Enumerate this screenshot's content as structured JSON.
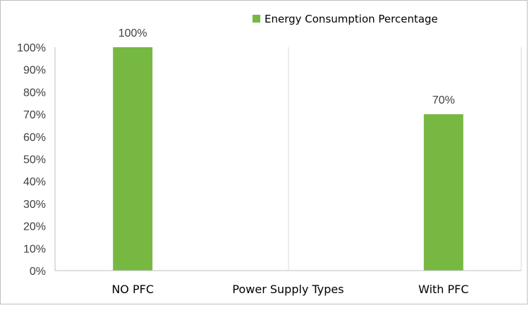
{
  "chart_data": {
    "type": "bar",
    "categories": [
      "NO PFC",
      "Power Supply Types",
      "With PFC"
    ],
    "series": [
      {
        "name": "Energy Consumption Percentage",
        "values": [
          100,
          null,
          70
        ],
        "data_labels": [
          "100%",
          "",
          "70%"
        ],
        "color": "#77b843"
      }
    ],
    "ylim": [
      0,
      100
    ],
    "yticks": [
      "0%",
      "10%",
      "20%",
      "30%",
      "40%",
      "50%",
      "60%",
      "70%",
      "80%",
      "90%",
      "100%"
    ],
    "ytick_values": [
      0,
      10,
      20,
      30,
      40,
      50,
      60,
      70,
      80,
      90,
      100
    ],
    "title": "",
    "xlabel": "",
    "ylabel": "",
    "grid": "vertical lines between categories",
    "legend_position": "top-right"
  },
  "colors": {
    "bar": "#77b843",
    "grid": "#d9d9d9",
    "axis": "#bfbfbf",
    "text": "#404040"
  }
}
